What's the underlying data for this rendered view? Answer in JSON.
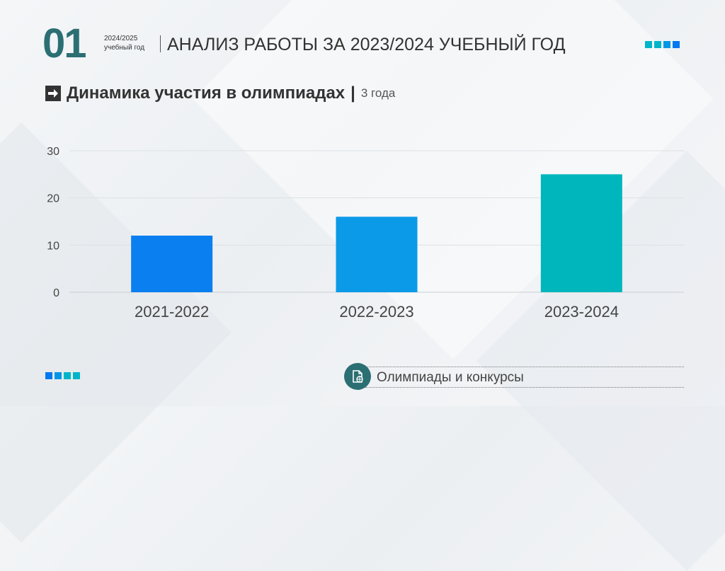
{
  "header": {
    "section_number": "01",
    "year": "2024/2025",
    "year_caption": "учебный год",
    "title": "АНАЛИЗ РАБОТЫ ЗА 2023/2024 УЧЕБНЫЙ ГОД"
  },
  "subtitle": {
    "main": "Динамика участия в олимпиадах",
    "separator": "|",
    "note": "3 года",
    "icon": "arrow-right-icon"
  },
  "colors": {
    "accent": "#2b6f73",
    "square_top": [
      "#00b5c8",
      "#00b5c8",
      "#0096e6",
      "#0078f0"
    ],
    "square_bottom": [
      "#0078f0",
      "#0096e6",
      "#00b5c8",
      "#00b5c8"
    ]
  },
  "chart_data": {
    "type": "bar",
    "categories": [
      "2021-2022",
      "2022-2023",
      "2023-2024"
    ],
    "values": [
      12,
      16,
      25
    ],
    "bar_colors": [
      "#0a7ff0",
      "#0a9ae8",
      "#00b6bd"
    ],
    "ylim": [
      0,
      30
    ],
    "yticks": [
      0,
      10,
      20,
      30
    ],
    "grid": true,
    "legend": "none",
    "xlabel": "",
    "ylabel": ""
  },
  "footer": {
    "icon": "document-globe-icon",
    "label": "Олимпиады и конкурсы"
  }
}
